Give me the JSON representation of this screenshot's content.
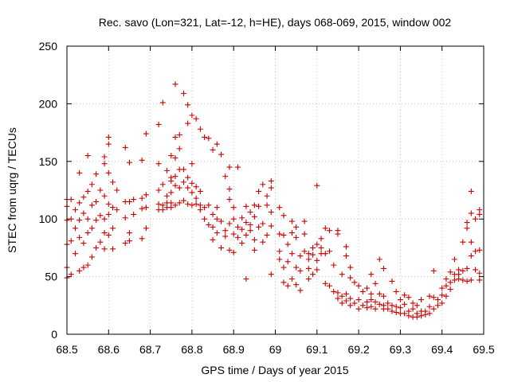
{
  "chart_data": {
    "type": "scatter",
    "title": "Rec. savo (Lon=321, Lat=-12, h=HE), days 068-069, 2015, window 002",
    "xlabel": "GPS time / Days of year 2015",
    "ylabel": "STEC from uqrg / TECUs",
    "xlim": [
      68.5,
      69.5
    ],
    "ylim": [
      0,
      250
    ],
    "xticks": [
      "68.5",
      "68.6",
      "68.7",
      "68.8",
      "68.9",
      "69",
      "69.1",
      "69.2",
      "69.3",
      "69.4",
      "69.5"
    ],
    "yticks": [
      "0",
      "50",
      "100",
      "150",
      "200",
      "250"
    ],
    "grid": true,
    "marker": "+",
    "marker_color": "#cc0000",
    "points": [
      [
        68.5,
        111
      ],
      [
        68.5,
        117
      ],
      [
        68.5,
        99
      ],
      [
        68.5,
        78
      ],
      [
        68.5,
        58
      ],
      [
        68.5,
        49
      ],
      [
        68.51,
        117
      ],
      [
        68.51,
        100
      ],
      [
        68.51,
        81
      ],
      [
        68.51,
        52
      ],
      [
        68.52,
        108
      ],
      [
        68.52,
        92
      ],
      [
        68.52,
        70
      ],
      [
        68.53,
        140
      ],
      [
        68.53,
        114
      ],
      [
        68.53,
        99
      ],
      [
        68.53,
        84
      ],
      [
        68.53,
        55
      ],
      [
        68.54,
        119
      ],
      [
        68.54,
        105
      ],
      [
        68.54,
        79
      ],
      [
        68.54,
        58
      ],
      [
        68.55,
        155
      ],
      [
        68.55,
        124
      ],
      [
        68.55,
        100
      ],
      [
        68.55,
        88
      ],
      [
        68.55,
        60
      ],
      [
        68.56,
        130
      ],
      [
        68.56,
        112
      ],
      [
        68.56,
        92
      ],
      [
        68.56,
        67
      ],
      [
        68.57,
        139
      ],
      [
        68.57,
        115
      ],
      [
        68.57,
        99
      ],
      [
        68.57,
        75
      ],
      [
        68.58,
        125
      ],
      [
        68.58,
        103
      ],
      [
        68.58,
        80
      ],
      [
        68.59,
        154
      ],
      [
        68.59,
        148
      ],
      [
        68.59,
        120
      ],
      [
        68.59,
        100
      ],
      [
        68.59,
        88
      ],
      [
        68.59,
        74
      ],
      [
        68.6,
        171
      ],
      [
        68.6,
        165
      ],
      [
        68.6,
        140
      ],
      [
        68.6,
        113
      ],
      [
        68.6,
        104
      ],
      [
        68.6,
        86
      ],
      [
        68.61,
        132
      ],
      [
        68.61,
        110
      ],
      [
        68.61,
        92
      ],
      [
        68.61,
        74
      ],
      [
        68.62,
        125
      ],
      [
        68.62,
        108
      ],
      [
        68.64,
        162
      ],
      [
        68.64,
        115
      ],
      [
        68.64,
        101
      ],
      [
        68.64,
        79
      ],
      [
        68.65,
        149
      ],
      [
        68.65,
        115
      ],
      [
        68.65,
        88
      ],
      [
        68.65,
        81
      ],
      [
        68.66,
        117
      ],
      [
        68.66,
        104
      ],
      [
        68.68,
        151
      ],
      [
        68.68,
        118
      ],
      [
        68.68,
        109
      ],
      [
        68.68,
        83
      ],
      [
        68.69,
        174
      ],
      [
        68.69,
        121
      ],
      [
        68.69,
        110
      ],
      [
        68.69,
        92
      ],
      [
        68.72,
        182
      ],
      [
        68.72,
        148
      ],
      [
        68.72,
        125
      ],
      [
        68.72,
        113
      ],
      [
        68.72,
        108
      ],
      [
        68.73,
        201
      ],
      [
        68.73,
        130
      ],
      [
        68.73,
        112
      ],
      [
        68.73,
        108
      ],
      [
        68.74,
        142
      ],
      [
        68.74,
        120
      ],
      [
        68.74,
        114
      ],
      [
        68.74,
        110
      ],
      [
        68.75,
        155
      ],
      [
        68.75,
        136
      ],
      [
        68.75,
        133
      ],
      [
        68.75,
        123
      ],
      [
        68.75,
        114
      ],
      [
        68.75,
        110
      ],
      [
        68.76,
        217
      ],
      [
        68.76,
        171
      ],
      [
        68.76,
        153
      ],
      [
        68.76,
        137
      ],
      [
        68.76,
        129
      ],
      [
        68.76,
        112
      ],
      [
        68.77,
        173
      ],
      [
        68.77,
        161
      ],
      [
        68.77,
        143
      ],
      [
        68.77,
        127
      ],
      [
        68.77,
        114
      ],
      [
        68.78,
        209
      ],
      [
        68.78,
        143
      ],
      [
        68.78,
        132
      ],
      [
        68.78,
        116
      ],
      [
        68.79,
        199
      ],
      [
        68.79,
        183
      ],
      [
        68.79,
        136
      ],
      [
        68.79,
        127
      ],
      [
        68.79,
        113
      ],
      [
        68.8,
        190
      ],
      [
        68.8,
        148
      ],
      [
        68.8,
        131
      ],
      [
        68.8,
        123
      ],
      [
        68.8,
        112
      ],
      [
        68.81,
        187
      ],
      [
        68.81,
        128
      ],
      [
        68.81,
        118
      ],
      [
        68.81,
        113
      ],
      [
        68.82,
        178
      ],
      [
        68.82,
        124
      ],
      [
        68.82,
        112
      ],
      [
        68.82,
        108
      ],
      [
        68.83,
        171
      ],
      [
        68.83,
        110
      ],
      [
        68.83,
        100
      ],
      [
        68.84,
        170
      ],
      [
        68.84,
        112
      ],
      [
        68.84,
        95
      ],
      [
        68.85,
        160
      ],
      [
        68.85,
        104
      ],
      [
        68.85,
        93
      ],
      [
        68.85,
        82
      ],
      [
        68.86,
        165
      ],
      [
        68.86,
        110
      ],
      [
        68.86,
        100
      ],
      [
        68.86,
        88
      ],
      [
        68.87,
        156
      ],
      [
        68.87,
        98
      ],
      [
        68.87,
        75
      ],
      [
        68.88,
        137
      ],
      [
        68.88,
        90
      ],
      [
        68.88,
        85
      ],
      [
        68.89,
        145
      ],
      [
        68.89,
        126
      ],
      [
        68.89,
        117
      ],
      [
        68.89,
        96
      ],
      [
        68.89,
        73
      ],
      [
        68.9,
        110
      ],
      [
        68.9,
        100
      ],
      [
        68.9,
        87
      ],
      [
        68.9,
        71
      ],
      [
        68.91,
        145
      ],
      [
        68.91,
        93
      ],
      [
        68.91,
        84
      ],
      [
        68.92,
        101
      ],
      [
        68.92,
        91
      ],
      [
        68.92,
        79
      ],
      [
        68.93,
        111
      ],
      [
        68.93,
        97
      ],
      [
        68.93,
        86
      ],
      [
        68.93,
        48
      ],
      [
        68.94,
        106
      ],
      [
        68.94,
        95
      ],
      [
        68.94,
        90
      ],
      [
        68.95,
        112
      ],
      [
        68.95,
        102
      ],
      [
        68.95,
        82
      ],
      [
        68.95,
        73
      ],
      [
        68.96,
        124
      ],
      [
        68.96,
        111
      ],
      [
        68.96,
        93
      ],
      [
        68.97,
        130
      ],
      [
        68.97,
        96
      ],
      [
        68.97,
        80
      ],
      [
        68.98,
        120
      ],
      [
        68.98,
        112
      ],
      [
        68.98,
        86
      ],
      [
        68.99,
        133
      ],
      [
        68.99,
        127
      ],
      [
        68.99,
        106
      ],
      [
        68.99,
        94
      ],
      [
        68.99,
        52
      ],
      [
        69.01,
        110
      ],
      [
        69.01,
        87
      ],
      [
        69.01,
        72
      ],
      [
        69.01,
        65
      ],
      [
        69.02,
        103
      ],
      [
        69.02,
        86
      ],
      [
        69.02,
        58
      ],
      [
        69.02,
        45
      ],
      [
        69.03,
        78
      ],
      [
        69.03,
        63
      ],
      [
        69.03,
        42
      ],
      [
        69.04,
        98
      ],
      [
        69.04,
        88
      ],
      [
        69.04,
        70
      ],
      [
        69.04,
        48
      ],
      [
        69.05,
        93
      ],
      [
        69.05,
        84
      ],
      [
        69.05,
        58
      ],
      [
        69.05,
        43
      ],
      [
        69.06,
        68
      ],
      [
        69.06,
        55
      ],
      [
        69.06,
        38
      ],
      [
        69.07,
        98
      ],
      [
        69.07,
        87
      ],
      [
        69.07,
        72
      ],
      [
        69.08,
        70
      ],
      [
        69.08,
        65
      ],
      [
        69.08,
        57
      ],
      [
        69.08,
        48
      ],
      [
        69.09,
        75
      ],
      [
        69.09,
        69
      ],
      [
        69.09,
        52
      ],
      [
        69.1,
        129
      ],
      [
        69.1,
        78
      ],
      [
        69.1,
        64
      ],
      [
        69.1,
        56
      ],
      [
        69.11,
        83
      ],
      [
        69.11,
        75
      ],
      [
        69.11,
        70
      ],
      [
        69.12,
        92
      ],
      [
        69.12,
        70
      ],
      [
        69.12,
        44
      ],
      [
        69.13,
        90
      ],
      [
        69.13,
        72
      ],
      [
        69.13,
        42
      ],
      [
        69.14,
        60
      ],
      [
        69.14,
        37
      ],
      [
        69.15,
        90
      ],
      [
        69.15,
        87
      ],
      [
        69.15,
        36
      ],
      [
        69.15,
        31
      ],
      [
        69.16,
        52
      ],
      [
        69.16,
        33
      ],
      [
        69.16,
        27
      ],
      [
        69.17,
        76
      ],
      [
        69.17,
        68
      ],
      [
        69.17,
        35
      ],
      [
        69.17,
        29
      ],
      [
        69.18,
        58
      ],
      [
        69.18,
        49
      ],
      [
        69.18,
        31
      ],
      [
        69.18,
        25
      ],
      [
        69.19,
        45
      ],
      [
        69.19,
        27
      ],
      [
        69.2,
        42
      ],
      [
        69.2,
        30
      ],
      [
        69.2,
        22
      ],
      [
        69.21,
        37
      ],
      [
        69.21,
        25
      ],
      [
        69.22,
        40
      ],
      [
        69.22,
        28
      ],
      [
        69.22,
        23
      ],
      [
        69.23,
        52
      ],
      [
        69.23,
        35
      ],
      [
        69.23,
        30
      ],
      [
        69.23,
        24
      ],
      [
        69.24,
        44
      ],
      [
        69.24,
        28
      ],
      [
        69.24,
        22
      ],
      [
        69.25,
        65
      ],
      [
        69.25,
        35
      ],
      [
        69.25,
        26
      ],
      [
        69.26,
        57
      ],
      [
        69.26,
        33
      ],
      [
        69.26,
        25
      ],
      [
        69.26,
        22
      ],
      [
        69.27,
        27
      ],
      [
        69.27,
        22
      ],
      [
        69.28,
        46
      ],
      [
        69.28,
        25
      ],
      [
        69.28,
        20
      ],
      [
        69.29,
        37
      ],
      [
        69.29,
        24
      ],
      [
        69.29,
        19
      ],
      [
        69.3,
        30
      ],
      [
        69.3,
        23
      ],
      [
        69.3,
        18
      ],
      [
        69.31,
        34
      ],
      [
        69.31,
        26
      ],
      [
        69.31,
        18
      ],
      [
        69.32,
        32
      ],
      [
        69.32,
        20
      ],
      [
        69.32,
        16
      ],
      [
        69.33,
        27
      ],
      [
        69.33,
        22
      ],
      [
        69.33,
        15
      ],
      [
        69.34,
        25
      ],
      [
        69.34,
        18
      ],
      [
        69.34,
        15
      ],
      [
        69.35,
        30
      ],
      [
        69.35,
        20
      ],
      [
        69.35,
        16
      ],
      [
        69.36,
        20
      ],
      [
        69.36,
        17
      ],
      [
        69.37,
        33
      ],
      [
        69.37,
        24
      ],
      [
        69.37,
        18
      ],
      [
        69.38,
        55
      ],
      [
        69.38,
        32
      ],
      [
        69.38,
        22
      ],
      [
        69.39,
        30
      ],
      [
        69.39,
        25
      ],
      [
        69.4,
        40
      ],
      [
        69.4,
        34
      ],
      [
        69.4,
        27
      ],
      [
        69.41,
        48
      ],
      [
        69.41,
        42
      ],
      [
        69.41,
        33
      ],
      [
        69.42,
        54
      ],
      [
        69.42,
        45
      ],
      [
        69.42,
        39
      ],
      [
        69.43,
        65
      ],
      [
        69.43,
        52
      ],
      [
        69.43,
        47
      ],
      [
        69.44,
        56
      ],
      [
        69.44,
        52
      ],
      [
        69.44,
        48
      ],
      [
        69.45,
        80
      ],
      [
        69.45,
        55
      ],
      [
        69.45,
        47
      ],
      [
        69.46,
        97
      ],
      [
        69.46,
        92
      ],
      [
        69.46,
        57
      ],
      [
        69.46,
        46
      ],
      [
        69.47,
        124
      ],
      [
        69.47,
        105
      ],
      [
        69.47,
        80
      ],
      [
        69.47,
        68
      ],
      [
        69.47,
        47
      ],
      [
        69.48,
        100
      ],
      [
        69.48,
        72
      ],
      [
        69.48,
        56
      ],
      [
        69.49,
        108
      ],
      [
        69.49,
        104
      ],
      [
        69.49,
        73
      ],
      [
        69.49,
        53
      ],
      [
        69.49,
        47
      ]
    ]
  }
}
